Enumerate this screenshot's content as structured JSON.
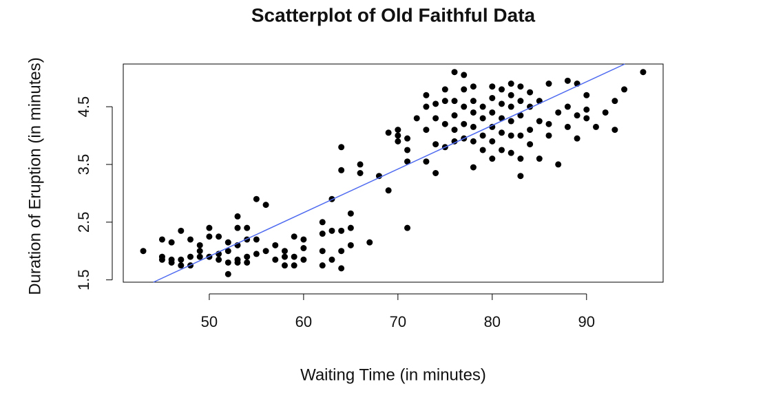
{
  "chart_data": {
    "type": "scatter",
    "title": "Scatterplot of Old Faithful Data",
    "x_label": "Waiting Time (in minutes)",
    "y_label": "Duration of Eruption (in minutes)",
    "xlim": [
      40.88,
      98.12
    ],
    "ylim": [
      1.46,
      5.24
    ],
    "xticks": [
      50,
      60,
      70,
      80,
      90
    ],
    "yticks": [
      1.5,
      2.5,
      3.5,
      4.5
    ],
    "color": "#000000",
    "x": [
      43,
      45,
      45,
      45,
      46,
      46,
      46,
      47,
      47,
      47,
      48,
      48,
      48,
      49,
      49,
      49,
      50,
      50,
      50,
      51,
      51,
      51,
      52,
      52,
      52,
      52,
      53,
      53,
      53,
      53,
      53,
      54,
      54,
      54,
      54,
      55,
      55,
      55,
      56,
      56,
      57,
      57,
      58,
      58,
      58,
      59,
      59,
      59,
      60,
      60,
      60,
      62,
      62,
      62,
      62,
      63,
      63,
      63,
      64,
      64,
      64,
      64,
      64,
      65,
      65,
      65,
      66,
      66,
      67,
      68,
      69,
      69,
      70,
      70,
      70,
      71,
      71,
      71,
      71,
      72,
      73,
      73,
      73,
      73,
      74,
      74,
      74,
      74,
      75,
      75,
      75,
      75,
      76,
      76,
      76,
      76,
      76,
      77,
      77,
      77,
      77,
      77,
      78,
      78,
      78,
      78,
      78,
      78,
      79,
      79,
      79,
      79,
      80,
      80,
      80,
      80,
      80,
      80,
      81,
      81,
      81,
      81,
      81,
      82,
      82,
      82,
      82,
      82,
      82,
      83,
      83,
      83,
      83,
      83,
      83,
      84,
      84,
      84,
      84,
      85,
      85,
      85,
      86,
      86,
      86,
      87,
      87,
      88,
      88,
      88,
      89,
      89,
      89,
      90,
      90,
      90,
      91,
      92,
      93,
      93,
      94,
      96
    ],
    "values": [
      2.0,
      1.9,
      1.85,
      2.2,
      1.8,
      2.15,
      1.85,
      1.75,
      1.85,
      2.35,
      1.75,
      1.9,
      2.2,
      1.9,
      2.0,
      2.1,
      1.9,
      2.25,
      2.4,
      1.85,
      1.95,
      2.25,
      1.6,
      1.8,
      2.0,
      2.15,
      1.8,
      1.85,
      2.1,
      2.4,
      2.6,
      1.8,
      1.9,
      2.2,
      2.4,
      1.95,
      2.2,
      2.9,
      2.0,
      2.8,
      1.85,
      2.1,
      1.75,
      1.9,
      2.0,
      1.75,
      1.9,
      2.25,
      1.85,
      2.05,
      2.2,
      1.75,
      2.0,
      2.3,
      2.5,
      1.85,
      2.35,
      2.9,
      1.7,
      2.0,
      2.35,
      3.4,
      3.8,
      2.1,
      2.4,
      2.65,
      3.35,
      3.5,
      2.15,
      3.3,
      3.05,
      4.05,
      3.9,
      4.0,
      4.1,
      2.4,
      3.55,
      3.75,
      3.95,
      4.3,
      3.55,
      4.1,
      4.5,
      4.7,
      3.35,
      3.85,
      4.3,
      4.55,
      3.8,
      4.2,
      4.6,
      4.8,
      3.9,
      4.1,
      4.35,
      4.6,
      5.1,
      3.95,
      4.2,
      4.5,
      4.8,
      5.05,
      3.45,
      3.9,
      4.15,
      4.4,
      4.6,
      4.85,
      3.75,
      4.0,
      4.3,
      4.5,
      3.6,
      3.9,
      4.15,
      4.4,
      4.65,
      4.85,
      3.75,
      4.05,
      4.3,
      4.55,
      4.8,
      3.7,
      4.0,
      4.25,
      4.5,
      4.7,
      4.9,
      3.3,
      3.6,
      4.0,
      4.35,
      4.6,
      4.85,
      3.85,
      4.1,
      4.5,
      4.75,
      3.6,
      4.25,
      4.6,
      4.0,
      4.2,
      4.9,
      3.5,
      4.4,
      4.15,
      4.5,
      4.95,
      3.95,
      4.35,
      4.9,
      4.3,
      4.45,
      4.7,
      4.15,
      4.4,
      4.1,
      4.6,
      4.8,
      5.1
    ],
    "fit_line": {
      "color": "#4f6bf0",
      "x": [
        44.08,
        94.06
      ],
      "values": [
        1.46,
        5.24
      ]
    }
  }
}
